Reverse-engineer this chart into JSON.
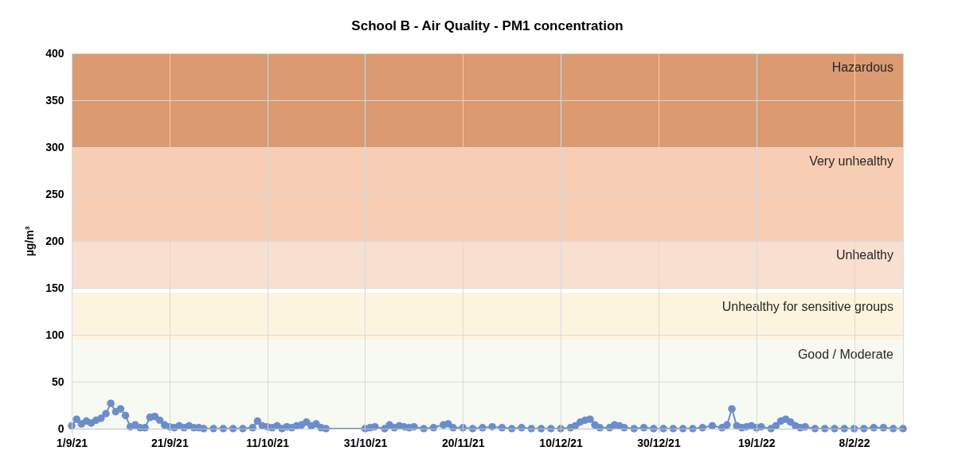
{
  "chart_data": {
    "type": "line",
    "title": "School B - Air Quality - PM1  concentration",
    "ylabel": "µg/m³",
    "x": [
      "2021-09-01",
      "2021-09-02",
      "2021-09-03",
      "2021-09-04",
      "2021-09-05",
      "2021-09-06",
      "2021-09-07",
      "2021-09-08",
      "2021-09-09",
      "2021-09-10",
      "2021-09-11",
      "2021-09-12",
      "2021-09-13",
      "2021-09-14",
      "2021-09-15",
      "2021-09-16",
      "2021-09-17",
      "2021-09-18",
      "2021-09-19",
      "2021-09-20",
      "2021-09-21",
      "2021-09-22",
      "2021-09-23",
      "2021-09-24",
      "2021-09-25",
      "2021-09-26",
      "2021-09-27",
      "2021-09-28",
      "2021-09-30",
      "2021-10-02",
      "2021-10-04",
      "2021-10-06",
      "2021-10-08",
      "2021-10-09",
      "2021-10-10",
      "2021-10-11",
      "2021-10-12",
      "2021-10-13",
      "2021-10-14",
      "2021-10-15",
      "2021-10-16",
      "2021-10-17",
      "2021-10-18",
      "2021-10-19",
      "2021-10-20",
      "2021-10-21",
      "2021-10-22",
      "2021-10-23",
      "2021-10-31",
      "2021-11-01",
      "2021-11-02",
      "2021-11-04",
      "2021-11-05",
      "2021-11-06",
      "2021-11-07",
      "2021-11-08",
      "2021-11-09",
      "2021-11-10",
      "2021-11-12",
      "2021-11-14",
      "2021-11-16",
      "2021-11-17",
      "2021-11-18",
      "2021-11-20",
      "2021-11-22",
      "2021-11-24",
      "2021-11-26",
      "2021-11-28",
      "2021-11-30",
      "2021-12-02",
      "2021-12-04",
      "2021-12-06",
      "2021-12-08",
      "2021-12-10",
      "2021-12-12",
      "2021-12-13",
      "2021-12-14",
      "2021-12-15",
      "2021-12-16",
      "2021-12-17",
      "2021-12-18",
      "2021-12-20",
      "2021-12-21",
      "2021-12-22",
      "2021-12-23",
      "2021-12-25",
      "2021-12-27",
      "2021-12-29",
      "2021-12-31",
      "2022-01-02",
      "2022-01-04",
      "2022-01-06",
      "2022-01-08",
      "2022-01-10",
      "2022-01-12",
      "2022-01-13",
      "2022-01-14",
      "2022-01-15",
      "2022-01-16",
      "2022-01-17",
      "2022-01-18",
      "2022-01-19",
      "2022-01-20",
      "2022-01-22",
      "2022-01-23",
      "2022-01-24",
      "2022-01-25",
      "2022-01-26",
      "2022-01-27",
      "2022-01-28",
      "2022-01-29",
      "2022-01-31",
      "2022-02-02",
      "2022-02-04",
      "2022-02-06",
      "2022-02-08",
      "2022-02-10",
      "2022-02-12",
      "2022-02-14",
      "2022-02-16",
      "2022-02-18"
    ],
    "series": [
      {
        "color": "#6a8dcb",
        "values": [
          3,
          10,
          5,
          8,
          6,
          9,
          11,
          16,
          27,
          18,
          21,
          14,
          2,
          4,
          1,
          1,
          12,
          13,
          9,
          4,
          2,
          1,
          3,
          1,
          3,
          1,
          1,
          0,
          0,
          0,
          0,
          0,
          1,
          8,
          3,
          2,
          1,
          3,
          0,
          2,
          1,
          3,
          4,
          7,
          3,
          5,
          1,
          0,
          0,
          1,
          2,
          0,
          4,
          1,
          3,
          2,
          1,
          2,
          0,
          1,
          4,
          5,
          1,
          1,
          0,
          1,
          2,
          1,
          0,
          1,
          0,
          0,
          0,
          0,
          1,
          3,
          7,
          9,
          10,
          4,
          1,
          1,
          4,
          3,
          1,
          0,
          1,
          0,
          0,
          0,
          0,
          0,
          1,
          3,
          1,
          4,
          21,
          3,
          1,
          2,
          3,
          1,
          2,
          0,
          3,
          8,
          10,
          7,
          3,
          1,
          2,
          0,
          0,
          0,
          0,
          0,
          0,
          1,
          1,
          0,
          0
        ]
      }
    ],
    "xlim": [
      "2021-09-01",
      "2022-02-18"
    ],
    "xticks": [
      {
        "value": "2021-09-01",
        "label": "1/9/21"
      },
      {
        "value": "2021-09-21",
        "label": "21/9/21"
      },
      {
        "value": "2021-10-11",
        "label": "11/10/21"
      },
      {
        "value": "2021-10-31",
        "label": "31/10/21"
      },
      {
        "value": "2021-11-20",
        "label": "20/11/21"
      },
      {
        "value": "2021-12-10",
        "label": "10/12/21"
      },
      {
        "value": "2021-12-30",
        "label": "30/12/21"
      },
      {
        "value": "2022-01-19",
        "label": "19/1/22"
      },
      {
        "value": "2022-02-08",
        "label": "8/2/22"
      }
    ],
    "ylim": [
      0,
      400
    ],
    "yticks": [
      0,
      50,
      100,
      150,
      200,
      250,
      300,
      350,
      400
    ],
    "bands": [
      {
        "axis": "y",
        "from": 0,
        "to": 94,
        "label": "Good / Moderate",
        "color": "#f7f9f3"
      },
      {
        "axis": "y",
        "from": 94,
        "to": 145,
        "label": "Unhealthy for sensitive groups",
        "color": "#fdf4df"
      },
      {
        "axis": "y",
        "from": 150,
        "to": 200,
        "label": "Unhealthy",
        "color": "#f9dfcf"
      },
      {
        "axis": "y",
        "from": 200,
        "to": 300,
        "label": "Very unhealthy",
        "color": "#f7cdb3"
      },
      {
        "axis": "y",
        "from": 300,
        "to": 400,
        "label": "Hazardous",
        "color": "#db9a6f"
      }
    ],
    "grid": true,
    "marker": "circle",
    "line_style": "solid"
  }
}
